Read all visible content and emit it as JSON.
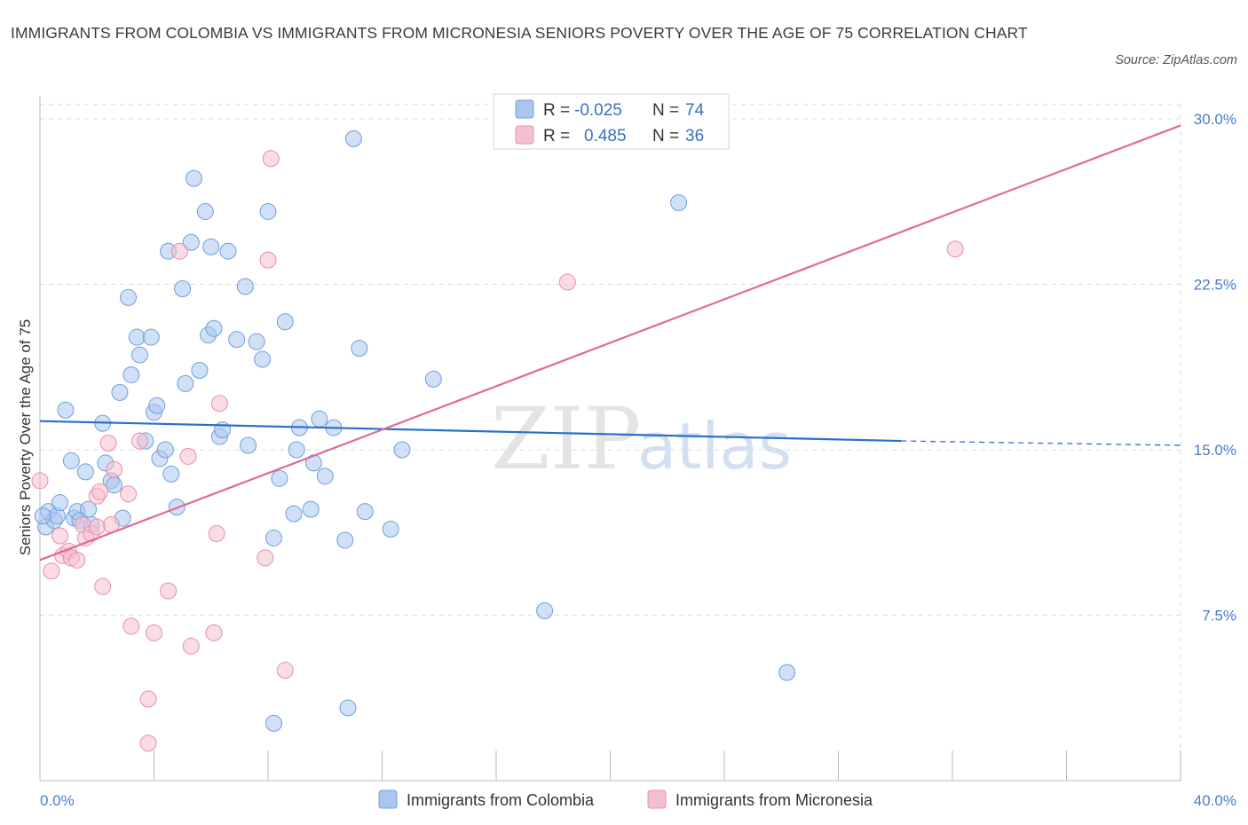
{
  "title": "IMMIGRANTS FROM COLOMBIA VS IMMIGRANTS FROM MICRONESIA SENIORS POVERTY OVER THE AGE OF 75 CORRELATION CHART",
  "source": "Source: ZipAtlas.com",
  "colors": {
    "colombia_fill": "#aac6ee",
    "colombia_stroke": "#6f9fdc",
    "colombia_line": "#2a6fca",
    "micronesia_fill": "#f5bfd0",
    "micronesia_stroke": "#e88fab",
    "micronesia_line": "#e06a93",
    "grid": "#d8d8d8",
    "tick_text": "#4a7cc9"
  },
  "legend": {
    "rows": [
      {
        "r_label": "R =",
        "r_value": "-0.025",
        "n_label": "N =",
        "n_value": "74"
      },
      {
        "r_label": "R =",
        "r_value": "0.485",
        "n_label": "N =",
        "n_value": "36"
      }
    ]
  },
  "watermark": {
    "zip": "ZIP",
    "atlas": "atlas"
  },
  "chart_data": {
    "type": "scatter",
    "xlabel": "",
    "ylabel": "Seniors Poverty Over the Age of 75",
    "xlim": [
      0,
      40
    ],
    "ylim": [
      0,
      30
    ],
    "x_tick_labels": [
      "0.0%",
      "40.0%"
    ],
    "y_ticks": [
      7.5,
      15,
      22.5,
      30
    ],
    "y_tick_labels": [
      "7.5%",
      "15.0%",
      "22.5%",
      "30.0%"
    ],
    "grid": true,
    "legend_position": "top-center",
    "series": [
      {
        "name": "Immigrants from Colombia",
        "trend": {
          "x": [
            0,
            30.2
          ],
          "y": [
            16.3,
            15.4
          ],
          "dashed_to_x": 40,
          "dashed_to_y": 15.2
        },
        "points": [
          [
            0.2,
            11.5
          ],
          [
            0.3,
            12.2
          ],
          [
            0.5,
            11.8
          ],
          [
            0.6,
            12.0
          ],
          [
            0.7,
            12.6
          ],
          [
            0.9,
            16.8
          ],
          [
            1.1,
            14.5
          ],
          [
            1.2,
            11.9
          ],
          [
            1.3,
            12.2
          ],
          [
            1.4,
            11.8
          ],
          [
            1.6,
            14.0
          ],
          [
            1.7,
            12.3
          ],
          [
            1.8,
            11.6
          ],
          [
            2.2,
            16.2
          ],
          [
            2.3,
            14.4
          ],
          [
            2.5,
            13.6
          ],
          [
            2.6,
            13.4
          ],
          [
            2.8,
            17.6
          ],
          [
            2.9,
            11.9
          ],
          [
            3.1,
            21.9
          ],
          [
            3.2,
            18.4
          ],
          [
            3.4,
            20.1
          ],
          [
            3.5,
            19.3
          ],
          [
            3.7,
            15.4
          ],
          [
            3.9,
            20.1
          ],
          [
            4.0,
            16.7
          ],
          [
            4.1,
            17.0
          ],
          [
            4.2,
            14.6
          ],
          [
            4.4,
            15.0
          ],
          [
            4.5,
            24.0
          ],
          [
            4.6,
            13.9
          ],
          [
            4.8,
            12.4
          ],
          [
            5.0,
            22.3
          ],
          [
            5.1,
            18.0
          ],
          [
            5.3,
            24.4
          ],
          [
            5.4,
            27.3
          ],
          [
            5.6,
            18.6
          ],
          [
            5.8,
            25.8
          ],
          [
            5.9,
            20.2
          ],
          [
            6.0,
            24.2
          ],
          [
            6.1,
            20.5
          ],
          [
            6.3,
            15.6
          ],
          [
            6.4,
            15.9
          ],
          [
            6.6,
            24.0
          ],
          [
            6.9,
            20.0
          ],
          [
            7.2,
            22.4
          ],
          [
            7.3,
            15.2
          ],
          [
            7.6,
            19.9
          ],
          [
            7.8,
            19.1
          ],
          [
            8.0,
            25.8
          ],
          [
            8.2,
            11.0
          ],
          [
            8.4,
            13.7
          ],
          [
            8.6,
            20.8
          ],
          [
            8.9,
            12.1
          ],
          [
            9.0,
            15.0
          ],
          [
            9.1,
            16.0
          ],
          [
            9.5,
            12.3
          ],
          [
            9.6,
            14.4
          ],
          [
            9.8,
            16.4
          ],
          [
            10.0,
            13.8
          ],
          [
            10.3,
            16.0
          ],
          [
            10.7,
            10.9
          ],
          [
            10.8,
            3.3
          ],
          [
            11.0,
            29.1
          ],
          [
            11.2,
            19.6
          ],
          [
            11.4,
            12.2
          ],
          [
            12.3,
            11.4
          ],
          [
            12.7,
            15.0
          ],
          [
            13.8,
            18.2
          ],
          [
            17.7,
            7.7
          ],
          [
            22.4,
            26.2
          ],
          [
            26.2,
            4.9
          ],
          [
            8.2,
            2.6
          ],
          [
            0.1,
            12.0
          ]
        ]
      },
      {
        "name": "Immigrants from Micronesia",
        "trend": {
          "x": [
            0,
            40
          ],
          "y": [
            10.0,
            29.7
          ]
        },
        "points": [
          [
            0.0,
            13.6
          ],
          [
            0.4,
            9.5
          ],
          [
            0.7,
            11.1
          ],
          [
            0.8,
            10.2
          ],
          [
            1.0,
            10.4
          ],
          [
            1.1,
            10.1
          ],
          [
            1.3,
            10.0
          ],
          [
            1.5,
            11.6
          ],
          [
            1.6,
            11.0
          ],
          [
            1.8,
            11.2
          ],
          [
            2.0,
            12.9
          ],
          [
            2.1,
            13.1
          ],
          [
            2.2,
            8.8
          ],
          [
            2.4,
            15.3
          ],
          [
            2.5,
            11.6
          ],
          [
            2.6,
            14.1
          ],
          [
            3.1,
            13.0
          ],
          [
            3.2,
            7.0
          ],
          [
            3.5,
            15.4
          ],
          [
            3.8,
            3.7
          ],
          [
            3.8,
            1.7
          ],
          [
            4.0,
            6.7
          ],
          [
            4.5,
            8.6
          ],
          [
            4.9,
            24.0
          ],
          [
            5.2,
            14.7
          ],
          [
            5.3,
            6.1
          ],
          [
            6.1,
            6.7
          ],
          [
            6.2,
            11.2
          ],
          [
            6.3,
            17.1
          ],
          [
            7.9,
            10.1
          ],
          [
            8.0,
            23.6
          ],
          [
            8.1,
            28.2
          ],
          [
            8.6,
            5.0
          ],
          [
            18.5,
            22.6
          ],
          [
            32.1,
            24.1
          ],
          [
            2.0,
            11.5
          ]
        ]
      }
    ]
  },
  "bottom_legend": [
    {
      "label": "Immigrants from Colombia"
    },
    {
      "label": "Immigrants from Micronesia"
    }
  ]
}
